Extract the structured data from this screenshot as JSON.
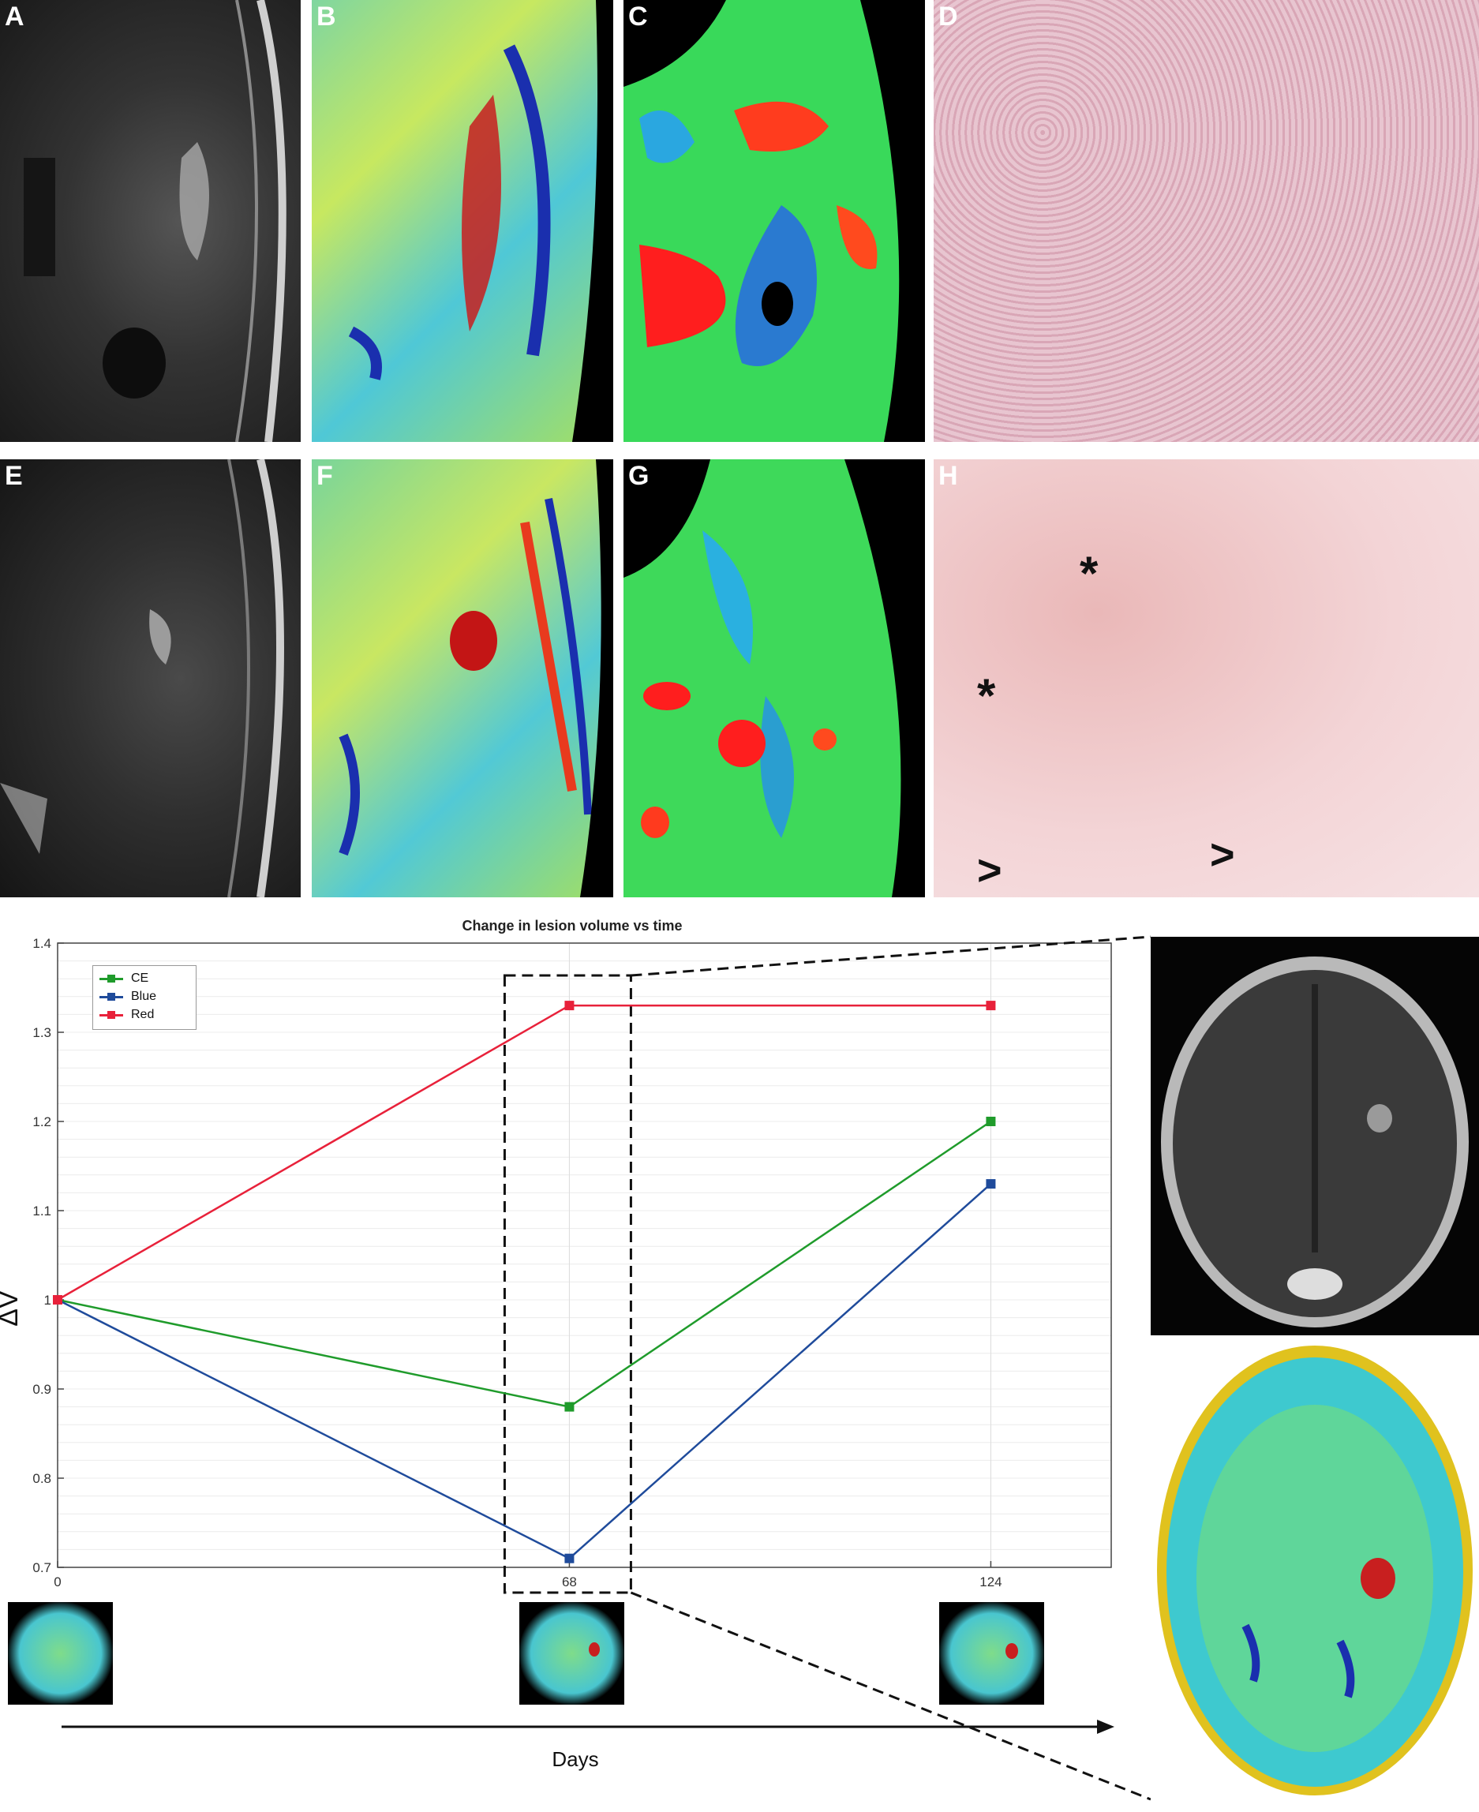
{
  "panels": {
    "A": "A",
    "B": "B",
    "C": "C",
    "D": "D",
    "E": "E",
    "F": "F",
    "G": "G",
    "H": "H"
  },
  "markers": {
    "asterisk": "*",
    "arrowhead": ">"
  },
  "colors": {
    "ce": "#1f9b2b",
    "blue": "#1f4b9b",
    "red": "#e8213a"
  },
  "chart_data": {
    "type": "line",
    "title": "Change in lesion volume vs time",
    "xlabel": "Days",
    "ylabel": "ΔV",
    "x": [
      0,
      68,
      124
    ],
    "x_ticks": [
      "0",
      "68",
      "124"
    ],
    "xlim": [
      0,
      140
    ],
    "ylim": [
      0.7,
      1.4
    ],
    "y_ticks": [
      "0.7",
      "0.8",
      "0.9",
      "1",
      "1.1",
      "1.2",
      "1.3",
      "1.4"
    ],
    "legend_position": "top-left",
    "grid": true,
    "series": [
      {
        "name": "CE",
        "values": [
          1.0,
          0.88,
          1.2
        ]
      },
      {
        "name": "Blue",
        "values": [
          1.0,
          0.71,
          1.13
        ]
      },
      {
        "name": "Red",
        "values": [
          1.0,
          1.33,
          1.33
        ]
      }
    ],
    "highlight_x": 68
  }
}
